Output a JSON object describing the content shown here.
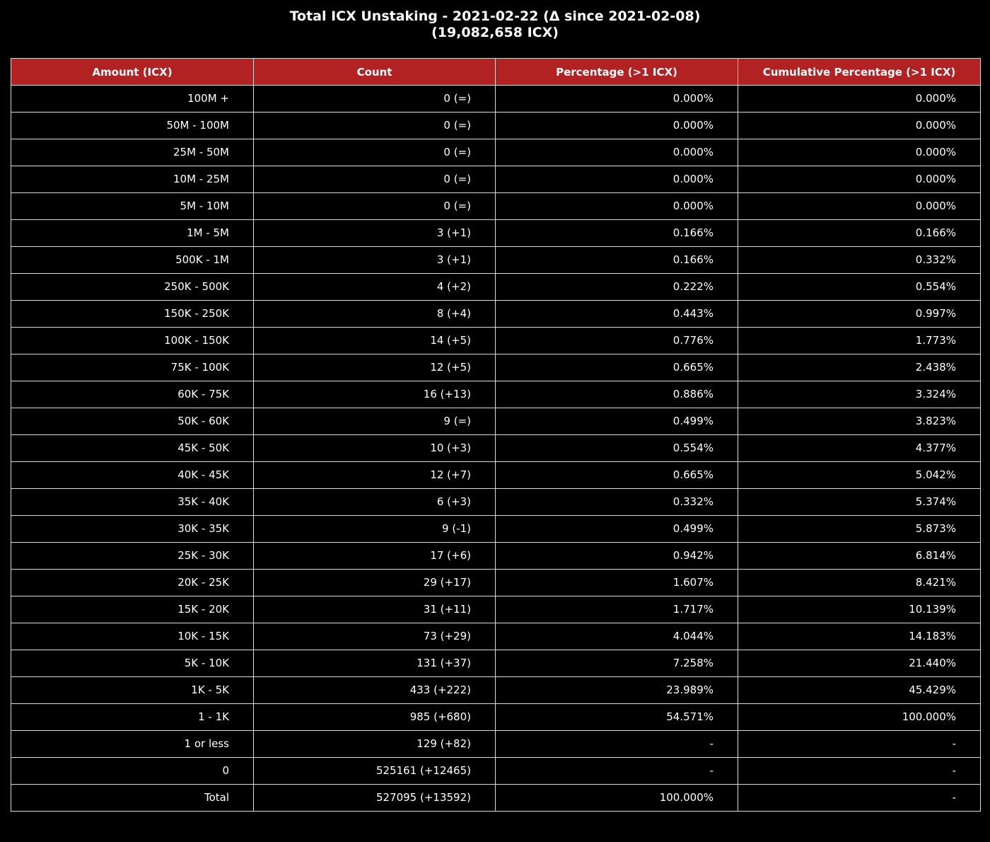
{
  "title": {
    "line1": "Total ICX Unstaking - 2021-02-22 (Δ since 2021-02-08)",
    "line2": "(19,082,658 ICX)"
  },
  "colors": {
    "background": "#000000",
    "header_fill": "#b22222",
    "grid": "#d9d9d9",
    "text": "#ffffff"
  },
  "chart_data": {
    "type": "table",
    "title": "Total ICX Unstaking - 2021-02-22 (Δ since 2021-02-08)\n(19,082,658 ICX)",
    "columns": [
      "Amount (ICX)",
      "Count",
      "Percentage (>1 ICX)",
      "Cumulative Percentage (>1 ICX)"
    ],
    "rows": [
      [
        "100M +",
        "0 (=)",
        "0.000%",
        "0.000%"
      ],
      [
        "50M - 100M",
        "0 (=)",
        "0.000%",
        "0.000%"
      ],
      [
        "25M - 50M",
        "0 (=)",
        "0.000%",
        "0.000%"
      ],
      [
        "10M - 25M",
        "0 (=)",
        "0.000%",
        "0.000%"
      ],
      [
        "5M - 10M",
        "0 (=)",
        "0.000%",
        "0.000%"
      ],
      [
        "1M - 5M",
        "3 (+1)",
        "0.166%",
        "0.166%"
      ],
      [
        "500K - 1M",
        "3 (+1)",
        "0.166%",
        "0.332%"
      ],
      [
        "250K - 500K",
        "4 (+2)",
        "0.222%",
        "0.554%"
      ],
      [
        "150K - 250K",
        "8 (+4)",
        "0.443%",
        "0.997%"
      ],
      [
        "100K - 150K",
        "14 (+5)",
        "0.776%",
        "1.773%"
      ],
      [
        "75K - 100K",
        "12 (+5)",
        "0.665%",
        "2.438%"
      ],
      [
        "60K - 75K",
        "16 (+13)",
        "0.886%",
        "3.324%"
      ],
      [
        "50K - 60K",
        "9 (=)",
        "0.499%",
        "3.823%"
      ],
      [
        "45K - 50K",
        "10 (+3)",
        "0.554%",
        "4.377%"
      ],
      [
        "40K - 45K",
        "12 (+7)",
        "0.665%",
        "5.042%"
      ],
      [
        "35K - 40K",
        "6 (+3)",
        "0.332%",
        "5.374%"
      ],
      [
        "30K - 35K",
        "9 (-1)",
        "0.499%",
        "5.873%"
      ],
      [
        "25K - 30K",
        "17 (+6)",
        "0.942%",
        "6.814%"
      ],
      [
        "20K - 25K",
        "29 (+17)",
        "1.607%",
        "8.421%"
      ],
      [
        "15K - 20K",
        "31 (+11)",
        "1.717%",
        "10.139%"
      ],
      [
        "10K - 15K",
        "73 (+29)",
        "4.044%",
        "14.183%"
      ],
      [
        "5K - 10K",
        "131 (+37)",
        "7.258%",
        "21.440%"
      ],
      [
        "1K - 5K",
        "433 (+222)",
        "23.989%",
        "45.429%"
      ],
      [
        "1 - 1K",
        "985 (+680)",
        "54.571%",
        "100.000%"
      ],
      [
        "1 or less",
        "129 (+82)",
        "-",
        "-"
      ],
      [
        "0",
        "525161 (+12465)",
        "-",
        "-"
      ],
      [
        "Total",
        "527095 (+13592)",
        "100.000%",
        "-"
      ]
    ]
  }
}
